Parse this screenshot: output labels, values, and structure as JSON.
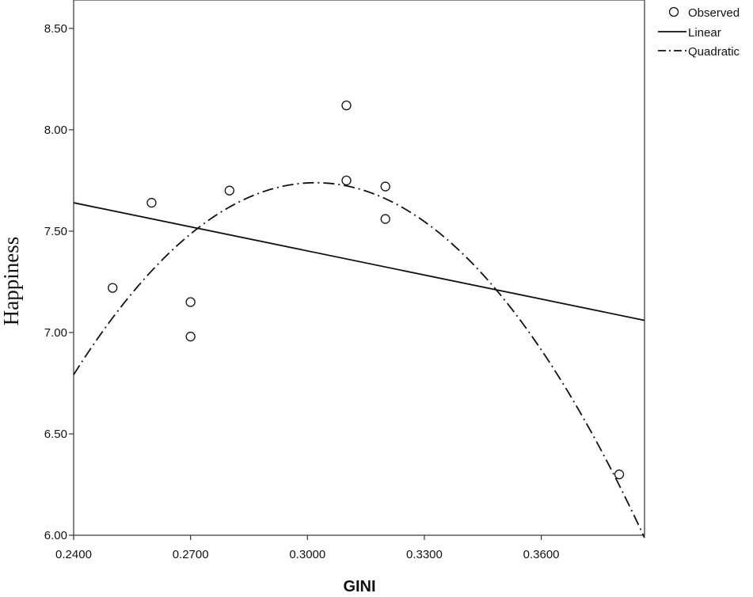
{
  "chart_data": {
    "type": "scatter",
    "title": "",
    "xlabel": "GINI",
    "ylabel": "Happiness",
    "xlim": [
      0.24,
      0.3865
    ],
    "ylim": [
      6.0,
      8.64
    ],
    "x_ticks": [
      "0.2400",
      "0.2700",
      "0.3000",
      "0.3300",
      "0.3600"
    ],
    "y_ticks": [
      "6.00",
      "6.50",
      "7.00",
      "7.50",
      "8.00",
      "8.50"
    ],
    "grid": false,
    "legend_position": "top-right",
    "series": [
      {
        "name": "Observed",
        "kind": "points",
        "points": [
          {
            "x": 0.25,
            "y": 7.22
          },
          {
            "x": 0.26,
            "y": 7.64
          },
          {
            "x": 0.27,
            "y": 7.15
          },
          {
            "x": 0.27,
            "y": 6.98
          },
          {
            "x": 0.28,
            "y": 7.7
          },
          {
            "x": 0.31,
            "y": 8.12
          },
          {
            "x": 0.31,
            "y": 7.75
          },
          {
            "x": 0.32,
            "y": 7.72
          },
          {
            "x": 0.32,
            "y": 7.56
          },
          {
            "x": 0.38,
            "y": 6.3
          }
        ]
      },
      {
        "name": "Linear",
        "kind": "line",
        "style": "solid",
        "x": [
          0.24,
          0.3865
        ],
        "y": [
          7.64,
          7.06
        ]
      },
      {
        "name": "Quadratic",
        "kind": "curve",
        "style": "dash-dot",
        "x": [
          0.24,
          0.255,
          0.27,
          0.285,
          0.3,
          0.304,
          0.315,
          0.33,
          0.345,
          0.36,
          0.375,
          0.3865
        ],
        "y": [
          6.77,
          7.19,
          7.49,
          7.69,
          7.76,
          7.76,
          7.71,
          7.53,
          7.26,
          6.87,
          6.39,
          6.06
        ]
      }
    ]
  }
}
